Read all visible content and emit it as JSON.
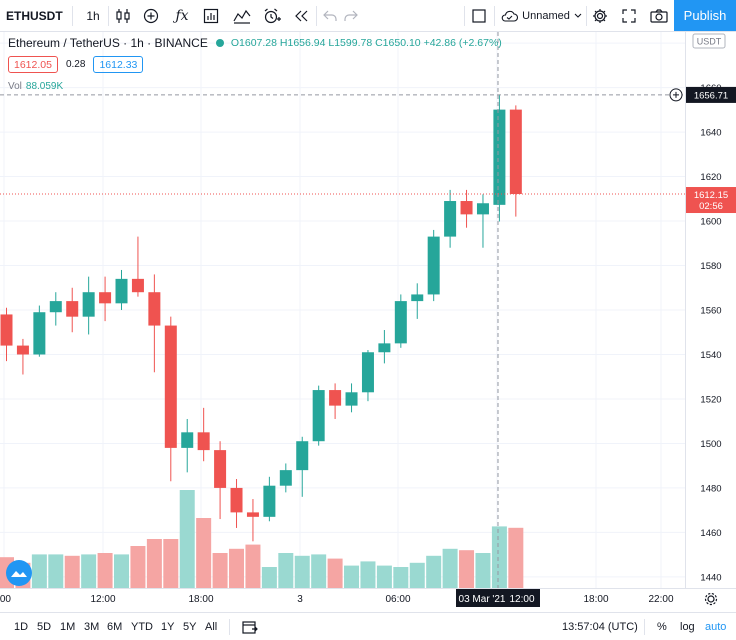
{
  "toolbar": {
    "symbol": "ETHUSDT",
    "interval": "1h",
    "chart_name": "Unnamed",
    "publish_label": "Publish",
    "icons": [
      "candles-icon",
      "add-indicator-icon",
      "fx-icon",
      "templates-icon",
      "compare-icon",
      "alert-icon",
      "replay-icon",
      "undo-icon",
      "redo-icon",
      "fullscreen-square-icon",
      "cloud-icon",
      "settings-icon",
      "expand-icon",
      "camera-icon"
    ]
  },
  "legend": {
    "title": "Ethereum / TetherUS · 1h · BINANCE",
    "open": "O1607.28",
    "high": "H1656.94",
    "low": "L1599.78",
    "close": "C1650.10",
    "change": "+42.86 (+2.67%)",
    "bid": "1612.05",
    "spread": "0.28",
    "ask": "1612.33",
    "vol_label": "Vol",
    "vol_value": "88.059K"
  },
  "axis": {
    "currency": "USDT",
    "crosshair_price": "1656.71",
    "last_price": "1612.15",
    "countdown": "02:56",
    "crosshair_time": "03 Mar '21"
  },
  "chart_data": {
    "type": "candlestick",
    "title": "Ethereum / TetherUS · 1h · BINANCE",
    "ylim": [
      1435,
      1685
    ],
    "yticks": [
      1440,
      1460,
      1480,
      1500,
      1520,
      1540,
      1560,
      1580,
      1600,
      1620,
      1640,
      1660,
      1680
    ],
    "xticks": [
      ":00",
      "12:00",
      "18:00",
      "3",
      "06:00",
      "12:00",
      "18:00",
      "22:00"
    ],
    "candles": [
      {
        "o": 1558,
        "h": 1561,
        "l": 1537,
        "c": 1544
      },
      {
        "o": 1544,
        "h": 1547,
        "l": 1531,
        "c": 1540
      },
      {
        "o": 1540,
        "h": 1562,
        "l": 1539,
        "c": 1559
      },
      {
        "o": 1559,
        "h": 1568,
        "l": 1553,
        "c": 1564
      },
      {
        "o": 1564,
        "h": 1570,
        "l": 1550,
        "c": 1557
      },
      {
        "o": 1557,
        "h": 1575,
        "l": 1549,
        "c": 1568
      },
      {
        "o": 1568,
        "h": 1575,
        "l": 1555,
        "c": 1563
      },
      {
        "o": 1563,
        "h": 1578,
        "l": 1560,
        "c": 1574
      },
      {
        "o": 1574,
        "h": 1593,
        "l": 1566,
        "c": 1568
      },
      {
        "o": 1568,
        "h": 1576,
        "l": 1532,
        "c": 1553
      },
      {
        "o": 1553,
        "h": 1557,
        "l": 1483,
        "c": 1498
      },
      {
        "o": 1498,
        "h": 1511,
        "l": 1487,
        "c": 1505
      },
      {
        "o": 1505,
        "h": 1516,
        "l": 1492,
        "c": 1497
      },
      {
        "o": 1497,
        "h": 1501,
        "l": 1466,
        "c": 1480
      },
      {
        "o": 1480,
        "h": 1484,
        "l": 1462,
        "c": 1469
      },
      {
        "o": 1469,
        "h": 1475,
        "l": 1456,
        "c": 1467
      },
      {
        "o": 1467,
        "h": 1485,
        "l": 1465,
        "c": 1481
      },
      {
        "o": 1481,
        "h": 1491,
        "l": 1478,
        "c": 1488
      },
      {
        "o": 1488,
        "h": 1503,
        "l": 1476,
        "c": 1501
      },
      {
        "o": 1501,
        "h": 1526,
        "l": 1499,
        "c": 1524
      },
      {
        "o": 1524,
        "h": 1527,
        "l": 1511,
        "c": 1517
      },
      {
        "o": 1517,
        "h": 1527,
        "l": 1514,
        "c": 1523
      },
      {
        "o": 1523,
        "h": 1542,
        "l": 1519,
        "c": 1541
      },
      {
        "o": 1541,
        "h": 1551,
        "l": 1536,
        "c": 1545
      },
      {
        "o": 1545,
        "h": 1567,
        "l": 1543,
        "c": 1564
      },
      {
        "o": 1564,
        "h": 1572,
        "l": 1556,
        "c": 1567
      },
      {
        "o": 1567,
        "h": 1596,
        "l": 1564,
        "c": 1593
      },
      {
        "o": 1593,
        "h": 1614,
        "l": 1588,
        "c": 1609
      },
      {
        "o": 1609,
        "h": 1614,
        "l": 1597,
        "c": 1603
      },
      {
        "o": 1603,
        "h": 1612,
        "l": 1588,
        "c": 1608
      },
      {
        "o": 1607.28,
        "h": 1656.94,
        "l": 1599.78,
        "c": 1650.1
      },
      {
        "o": 1650.1,
        "h": 1652,
        "l": 1602,
        "c": 1612.15
      }
    ],
    "volume": {
      "ylim": [
        0,
        100
      ],
      "values": [
        22,
        18,
        24,
        24,
        23,
        24,
        25,
        24,
        30,
        35,
        35,
        70,
        50,
        25,
        28,
        31,
        15,
        25,
        23,
        24,
        21,
        16,
        19,
        16,
        15,
        18,
        23,
        28,
        27,
        25,
        44,
        43
      ],
      "up_color": "#9ad9d1",
      "down_color": "#f5a5a3"
    }
  },
  "bottom": {
    "ranges": [
      "1D",
      "5D",
      "1M",
      "3M",
      "6M",
      "YTD",
      "1Y",
      "5Y",
      "All"
    ],
    "time": "13:57:04 (UTC)",
    "percent": "%",
    "log": "log",
    "auto": "auto"
  },
  "colors": {
    "up": "#26a69a",
    "down": "#ef5350",
    "accent": "#2196f3",
    "grid": "#f0f3fa"
  }
}
